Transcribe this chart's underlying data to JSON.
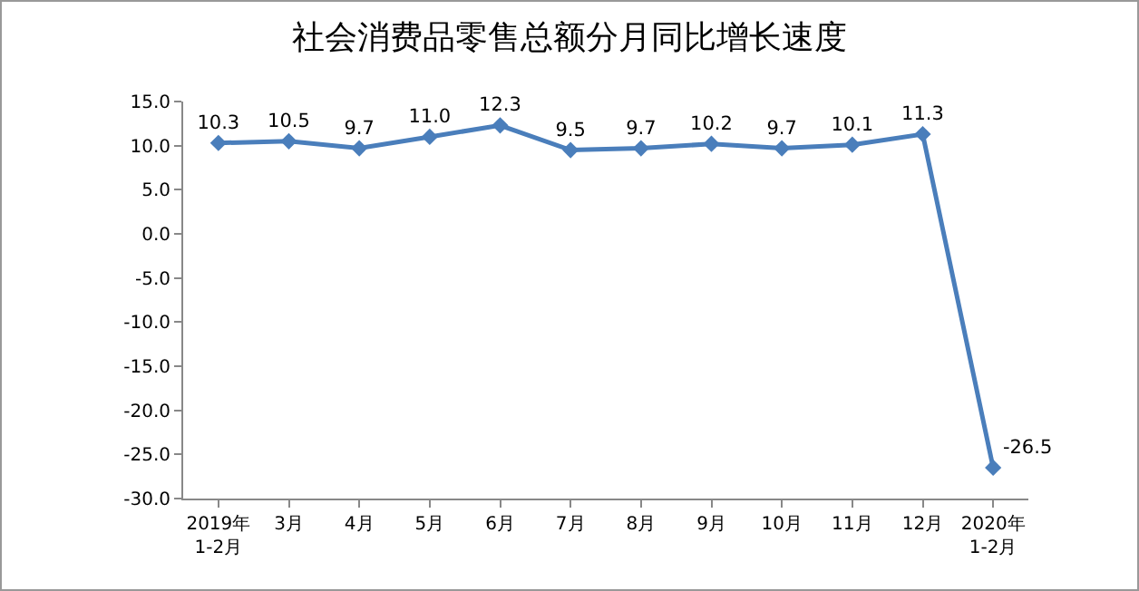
{
  "chart_data": {
    "type": "line",
    "title": "社会消费品零售总额分月同比增长速度",
    "categories": [
      "2019年\n1-2月",
      "3月",
      "4月",
      "5月",
      "6月",
      "7月",
      "8月",
      "9月",
      "10月",
      "11月",
      "12月",
      "2020年\n1-2月"
    ],
    "series": [
      {
        "color": "#4a7ebb",
        "values": [
          10.3,
          10.5,
          9.7,
          11.0,
          12.3,
          9.5,
          9.7,
          10.2,
          9.7,
          10.1,
          11.3,
          -26.5
        ],
        "value_labels": [
          "10.3",
          "10.5",
          "9.7",
          "11.0",
          "12.3",
          "9.5",
          "9.7",
          "10.2",
          "9.7",
          "10.1",
          "11.3",
          "-26.5"
        ]
      }
    ],
    "ylim": [
      -30,
      15
    ],
    "yticks": [
      {
        "value": -30,
        "label": "-30.0"
      },
      {
        "value": -25,
        "label": "-25.0"
      },
      {
        "value": -20,
        "label": "-20.0"
      },
      {
        "value": -15,
        "label": "-15.0"
      },
      {
        "value": -10,
        "label": "-10.0"
      },
      {
        "value": -5,
        "label": "-5.0"
      },
      {
        "value": 0,
        "label": "0.0"
      },
      {
        "value": 5,
        "label": "5.0"
      },
      {
        "value": 10,
        "label": "10.0"
      },
      {
        "value": 15,
        "label": "15.0"
      }
    ],
    "grid": false,
    "legend": false,
    "marker": "diamond",
    "line_style": "solid"
  }
}
